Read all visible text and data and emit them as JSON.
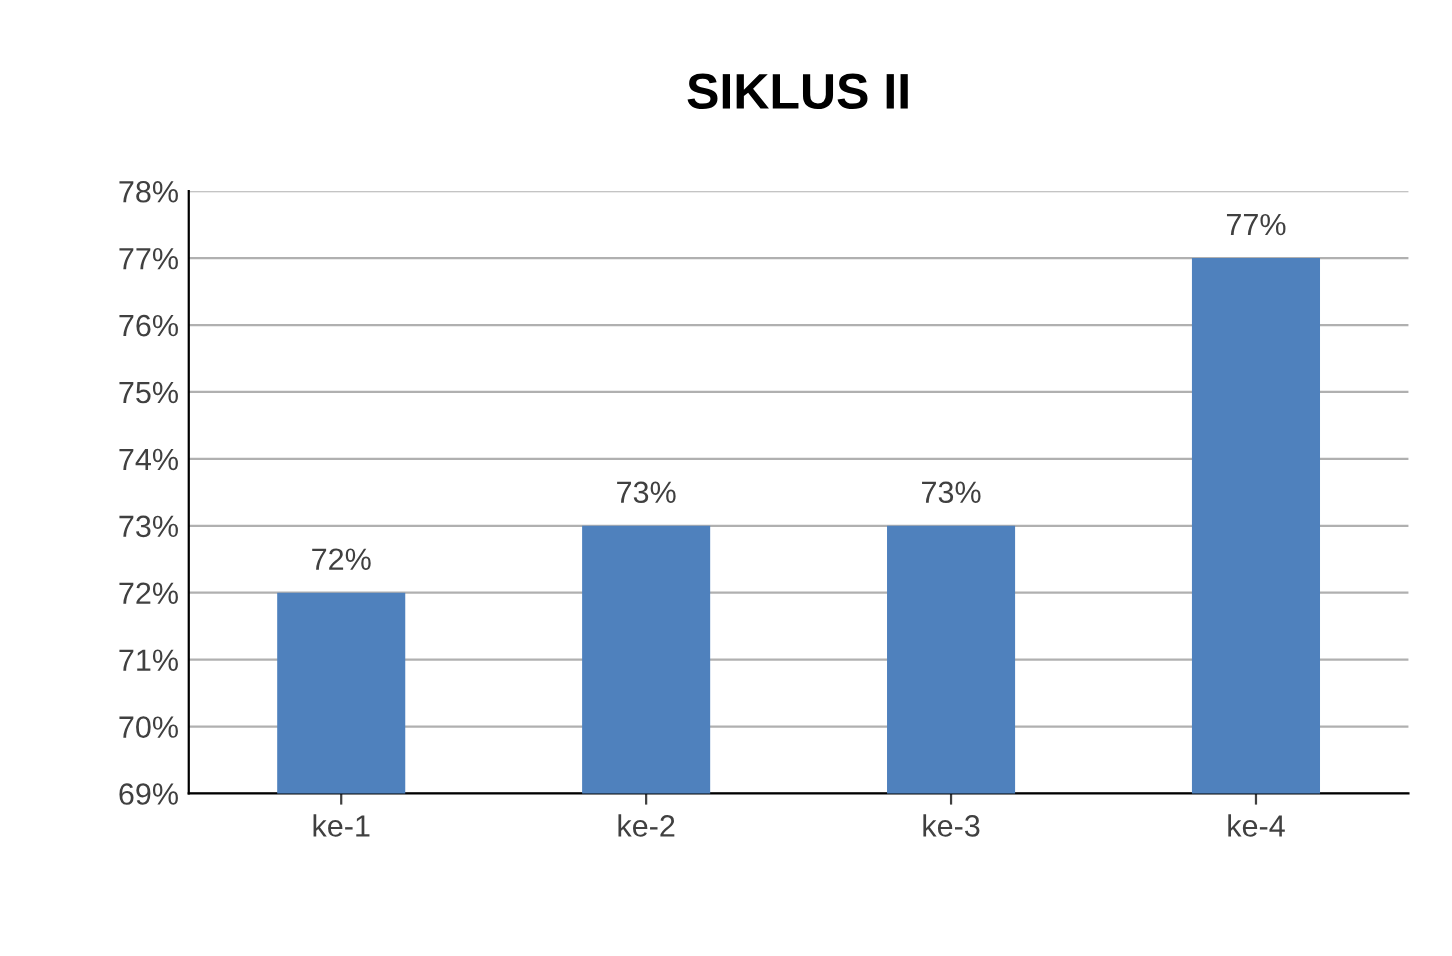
{
  "chart_data": {
    "type": "bar",
    "title": "SIKLUS II",
    "categories": [
      "ke-1",
      "ke-2",
      "ke-3",
      "ke-4"
    ],
    "values": [
      72,
      73,
      73,
      77
    ],
    "value_labels": [
      "72%",
      "73%",
      "73%",
      "77%"
    ],
    "color": "#4f81bd",
    "ylim": [
      69,
      78
    ],
    "yticks": [
      {
        "value": 69,
        "label": "69%"
      },
      {
        "value": 70,
        "label": "70%"
      },
      {
        "value": 71,
        "label": "71%"
      },
      {
        "value": 72,
        "label": "72%"
      },
      {
        "value": 73,
        "label": "73%"
      },
      {
        "value": 74,
        "label": "74%"
      },
      {
        "value": 75,
        "label": "75%"
      },
      {
        "value": 76,
        "label": "76%"
      },
      {
        "value": 77,
        "label": "77%"
      },
      {
        "value": 78,
        "label": "78%"
      }
    ],
    "grid": "y",
    "legend": false
  }
}
